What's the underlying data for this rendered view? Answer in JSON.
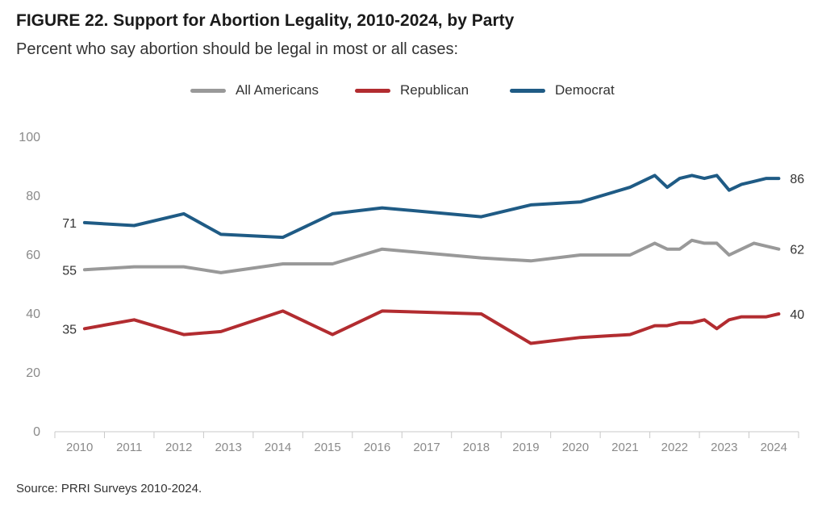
{
  "title": "FIGURE 22.  Support for Abortion Legality, 2010-2024, by Party",
  "subtitle": "Percent who say abortion should be legal in most or all cases:",
  "source": "Source: PRRI Surveys 2010-2024.",
  "colors": {
    "all": "#999999",
    "republican": "#b22c30",
    "democrat": "#1f5b85"
  },
  "chart_data": {
    "type": "line",
    "title": "FIGURE 22.  Support for Abortion Legality, 2010-2024, by Party",
    "subtitle": "Percent who say abortion should be legal in most or all cases:",
    "xlabel": "",
    "ylabel": "",
    "ylim": [
      0,
      100
    ],
    "yticks": [
      0,
      20,
      40,
      60,
      80,
      100
    ],
    "xlim": [
      2010,
      2025
    ],
    "xticks": [
      "2010",
      "2011",
      "2012",
      "2013",
      "2014",
      "2015",
      "2016",
      "2017",
      "2018",
      "2019",
      "2020",
      "2021",
      "2022",
      "2023",
      "2024"
    ],
    "legend_position": "top-center",
    "grid": false,
    "series": [
      {
        "name": "All Americans",
        "color": "#999999",
        "start_label": "55",
        "end_label": "62",
        "points": [
          [
            2010.0,
            55
          ],
          [
            2011.0,
            56
          ],
          [
            2012.0,
            56
          ],
          [
            2012.75,
            54
          ],
          [
            2014.0,
            57
          ],
          [
            2015.0,
            57
          ],
          [
            2016.0,
            62
          ],
          [
            2018.0,
            59
          ],
          [
            2019.0,
            58
          ],
          [
            2020.0,
            60
          ],
          [
            2021.0,
            60
          ],
          [
            2021.5,
            64
          ],
          [
            2021.75,
            62
          ],
          [
            2022.0,
            62
          ],
          [
            2022.25,
            65
          ],
          [
            2022.5,
            64
          ],
          [
            2022.75,
            64
          ],
          [
            2023.0,
            60
          ],
          [
            2023.25,
            62
          ],
          [
            2023.5,
            64
          ],
          [
            2023.75,
            63
          ],
          [
            2024.0,
            62
          ]
        ]
      },
      {
        "name": "Republican",
        "color": "#b22c30",
        "start_label": "35",
        "end_label": "40",
        "points": [
          [
            2010.0,
            35
          ],
          [
            2011.0,
            38
          ],
          [
            2012.0,
            33
          ],
          [
            2012.75,
            34
          ],
          [
            2014.0,
            41
          ],
          [
            2015.0,
            33
          ],
          [
            2016.0,
            41
          ],
          [
            2018.0,
            40
          ],
          [
            2019.0,
            30
          ],
          [
            2020.0,
            32
          ],
          [
            2021.0,
            33
          ],
          [
            2021.5,
            36
          ],
          [
            2021.75,
            36
          ],
          [
            2022.0,
            37
          ],
          [
            2022.25,
            37
          ],
          [
            2022.5,
            38
          ],
          [
            2022.75,
            35
          ],
          [
            2023.0,
            38
          ],
          [
            2023.25,
            39
          ],
          [
            2023.5,
            39
          ],
          [
            2023.75,
            39
          ],
          [
            2024.0,
            40
          ]
        ]
      },
      {
        "name": "Democrat",
        "color": "#1f5b85",
        "start_label": "71",
        "end_label": "86",
        "points": [
          [
            2010.0,
            71
          ],
          [
            2011.0,
            70
          ],
          [
            2012.0,
            74
          ],
          [
            2012.75,
            67
          ],
          [
            2014.0,
            66
          ],
          [
            2015.0,
            74
          ],
          [
            2016.0,
            76
          ],
          [
            2018.0,
            73
          ],
          [
            2019.0,
            77
          ],
          [
            2020.0,
            78
          ],
          [
            2021.0,
            83
          ],
          [
            2021.5,
            87
          ],
          [
            2021.75,
            83
          ],
          [
            2022.0,
            86
          ],
          [
            2022.25,
            87
          ],
          [
            2022.5,
            86
          ],
          [
            2022.75,
            87
          ],
          [
            2023.0,
            82
          ],
          [
            2023.25,
            84
          ],
          [
            2023.5,
            85
          ],
          [
            2023.75,
            86
          ],
          [
            2024.0,
            86
          ]
        ]
      }
    ]
  }
}
